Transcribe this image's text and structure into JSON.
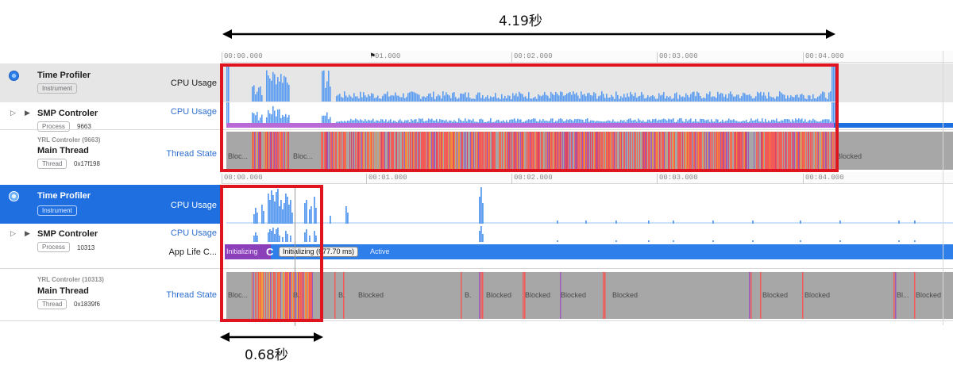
{
  "annotations": {
    "top_duration": "4.19秒",
    "bottom_duration": "0.68秒"
  },
  "ruler": {
    "ticks": [
      "00:00.000",
      "01.000",
      "00:02.000",
      "00:03.000",
      "00:04.000"
    ],
    "ticks2": [
      "00:00.000",
      "00:01.000",
      "00:02.000",
      "00:03.000",
      "00:04.000"
    ]
  },
  "top_panel": {
    "profiler": {
      "title": "Time Profiler",
      "badge": "Instrument",
      "track": "CPU Usage"
    },
    "process": {
      "title": "SMP Controler",
      "badge": "Process",
      "pid": "9663",
      "track": "CPU Usage"
    },
    "thread": {
      "subtitle": "YRL Controler (9663)",
      "title": "Main Thread",
      "badge": "Thread",
      "addr": "0x17f198",
      "track": "Thread State"
    },
    "states": [
      "Bloc...",
      "Bloc...",
      "Blocked"
    ]
  },
  "bottom_panel": {
    "profiler": {
      "title": "Time Profiler",
      "badge": "Instrument",
      "track": "CPU Usage"
    },
    "process": {
      "title": "SMP Controler",
      "badge": "Process",
      "pid": "10313",
      "track": "CPU Usage",
      "app_track": "App Life C..."
    },
    "lifecycle": {
      "initializing": "Initializing",
      "popup": "Initializing (677.70 ms)",
      "active": "Active"
    },
    "thread": {
      "subtitle": "YRL Controler (10313)",
      "title": "Main Thread",
      "badge": "Thread",
      "addr": "0x1839f6",
      "track": "Thread State"
    },
    "states": [
      "Bloc...",
      "B.",
      "B.",
      "Blocked",
      "B.",
      "Blocked",
      "Blocked",
      "Blocked",
      "Blocked",
      "Blocked",
      "Blocked",
      "Bl...",
      "Blocked"
    ]
  },
  "colors": {
    "accent": "#1f6fe0",
    "cpu": "#5b9cf0",
    "red_box": "#e0141e",
    "blocked": "#a7a7a7",
    "running": "#f25a57",
    "lifecycle_purple": "#8b3fb8"
  }
}
